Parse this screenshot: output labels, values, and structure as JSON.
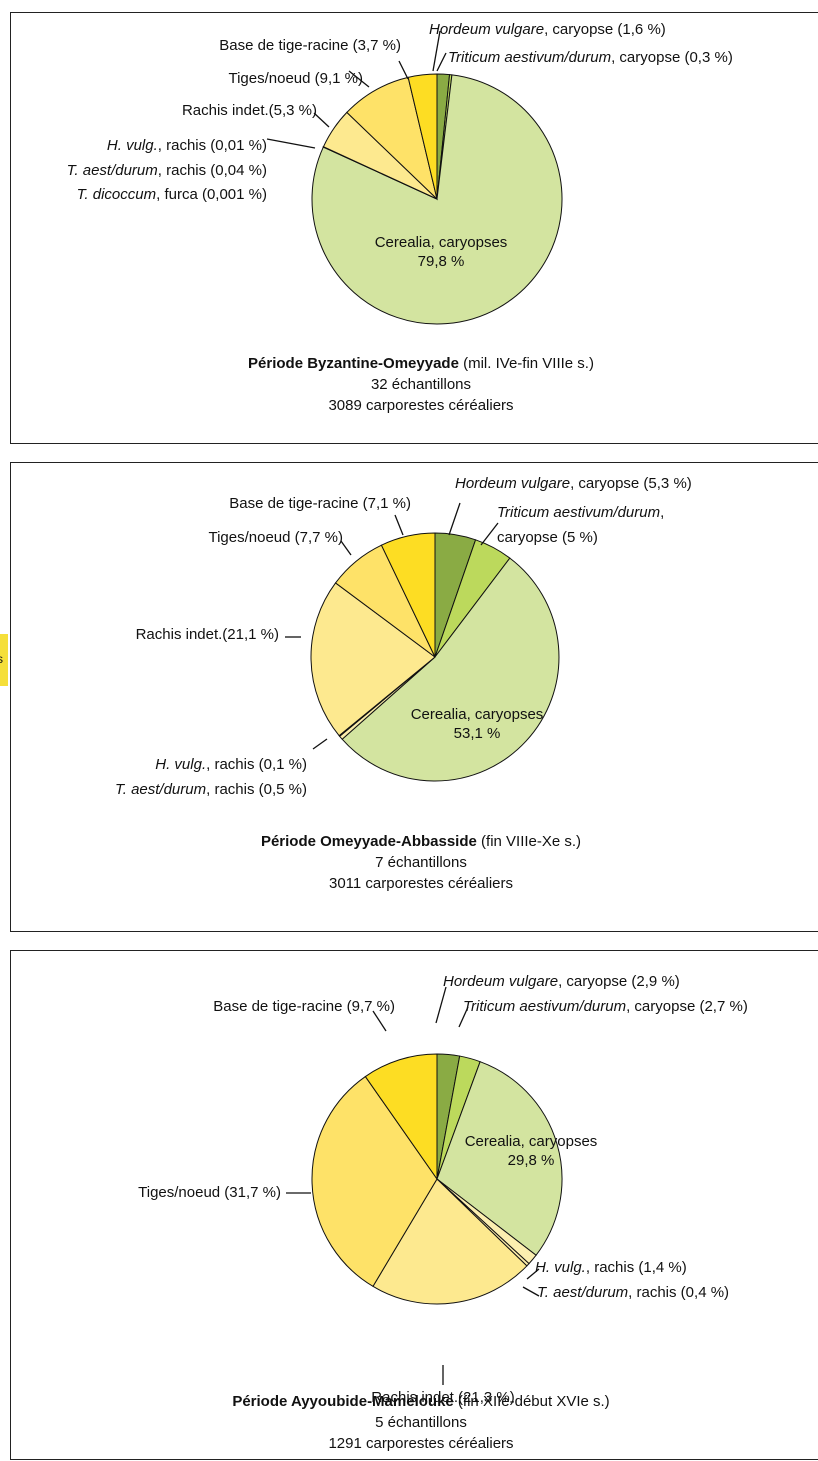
{
  "edge_tab": {
    "text": "s"
  },
  "panels": [
    {
      "caption": {
        "period": "Période Byzantine-Omeyyade",
        "dates": " (mil. IVe-fin VIIIe s.)",
        "samples": "32 échantillons",
        "count": "3089 carporestes céréaliers"
      },
      "labels": [
        {
          "it": "Hordeum vulgare",
          "rest": ", caryopse (1,6 %)"
        },
        {
          "it": "Triticum aestivum/durum",
          "rest": ", caryopse (0,3 %)"
        },
        {
          "it": "",
          "rest": "Base de tige-racine (3,7 %)"
        },
        {
          "it": "",
          "rest": "Tiges/noeud (9,1 %)"
        },
        {
          "it": "",
          "rest": "Rachis indet.(5,3 %)"
        },
        {
          "it": "H. vulg.",
          "rest": ", rachis (0,01 %)"
        },
        {
          "it": "T. aest/durum",
          "rest": ", rachis (0,04 %)"
        },
        {
          "it": "T. dicoccum",
          "rest": ", furca (0,001 %)"
        },
        {
          "it": "",
          "rest": "Cerealia, caryopses"
        },
        {
          "it": "",
          "rest": "79,8 %"
        }
      ]
    },
    {
      "caption": {
        "period": "Période Omeyyade-Abbasside",
        "dates": " (fin VIIIe-Xe s.)",
        "samples": "7 échantillons",
        "count": "3011 carporestes céréaliers"
      },
      "labels": [
        {
          "it": "Hordeum vulgare",
          "rest": ", caryopse (5,3 %)"
        },
        {
          "it": "Triticum aestivum/durum",
          "rest": ","
        },
        {
          "it": "",
          "rest": "caryopse (5 %)"
        },
        {
          "it": "",
          "rest": "Base de tige-racine (7,1 %)"
        },
        {
          "it": "",
          "rest": "Tiges/noeud (7,7 %)"
        },
        {
          "it": "",
          "rest": "Rachis indet.(21,1 %)"
        },
        {
          "it": "H. vulg.",
          "rest": ", rachis (0,1 %)"
        },
        {
          "it": "T. aest/durum",
          "rest": ", rachis (0,5 %)"
        },
        {
          "it": "",
          "rest": "Cerealia, caryopses"
        },
        {
          "it": "",
          "rest": "53,1 %"
        }
      ]
    },
    {
      "caption": {
        "period": "Période Ayyoubide-Mamelouke",
        "dates": " (fin XIIe-début XVIe s.)",
        "samples": "5 échantillons",
        "count": "1291 carporestes céréaliers"
      },
      "labels": [
        {
          "it": "Hordeum vulgare",
          "rest": ", caryopse (2,9 %)"
        },
        {
          "it": "Triticum aestivum/durum",
          "rest": ", caryopse (2,7 %)"
        },
        {
          "it": "",
          "rest": "Base de tige-racine (9,7 %)"
        },
        {
          "it": "",
          "rest": "Cerealia, caryopses"
        },
        {
          "it": "",
          "rest": "29,8 %"
        },
        {
          "it": "",
          "rest": "Tiges/noeud (31,7 %)"
        },
        {
          "it": "H. vulg.",
          "rest": ", rachis (1,4 %)"
        },
        {
          "it": "T. aest/durum",
          "rest": ", rachis (0,4 %)"
        },
        {
          "it": "",
          "rest": "Rachis indet.(21,3 %)"
        }
      ]
    }
  ],
  "chart_data": [
    {
      "type": "pie",
      "title": "Période Byzantine-Omeyyade (mil. IVe-fin VIIIe s.)",
      "start_angle_deg": 0,
      "direction": "clockwise",
      "slices": [
        {
          "label": "Hordeum vulgare, caryopse",
          "value": 1.6,
          "color": "#8aab44"
        },
        {
          "label": "Triticum aestivum/durum, caryopse",
          "value": 0.3,
          "color": "#bcd95c"
        },
        {
          "label": "Cerealia, caryopses",
          "value": 79.8,
          "color": "#d3e4a0"
        },
        {
          "label": "T. dicoccum, furca",
          "value": 0.001,
          "color": "#fdf0b8"
        },
        {
          "label": "T. aest/durum, rachis",
          "value": 0.04,
          "color": "#fcedab"
        },
        {
          "label": "H. vulg., rachis",
          "value": 0.01,
          "color": "#fcefb0"
        },
        {
          "label": "Rachis indet.",
          "value": 5.3,
          "color": "#fde98f"
        },
        {
          "label": "Tiges/noeud",
          "value": 9.1,
          "color": "#fee268"
        },
        {
          "label": "Base de tige-racine",
          "value": 3.7,
          "color": "#fddd23"
        }
      ]
    },
    {
      "type": "pie",
      "title": "Période Omeyyade-Abbasside (fin VIIIe-Xe s.)",
      "start_angle_deg": 0,
      "direction": "clockwise",
      "slices": [
        {
          "label": "Hordeum vulgare, caryopse",
          "value": 5.3,
          "color": "#8aab44"
        },
        {
          "label": "Triticum aestivum/durum, caryopse",
          "value": 5.0,
          "color": "#bcd95c"
        },
        {
          "label": "Cerealia, caryopses",
          "value": 53.1,
          "color": "#d3e4a0"
        },
        {
          "label": "T. aest/durum, rachis",
          "value": 0.5,
          "color": "#fcedab"
        },
        {
          "label": "H. vulg., rachis",
          "value": 0.1,
          "color": "#fcefb0"
        },
        {
          "label": "Rachis indet.",
          "value": 21.1,
          "color": "#fde98f"
        },
        {
          "label": "Tiges/noeud",
          "value": 7.7,
          "color": "#fee268"
        },
        {
          "label": "Base de tige-racine",
          "value": 7.1,
          "color": "#fddd23"
        }
      ]
    },
    {
      "type": "pie",
      "title": "Période Ayyoubide-Mamelouke (fin XIIe-début XVIe s.)",
      "start_angle_deg": 0,
      "direction": "clockwise",
      "slices": [
        {
          "label": "Hordeum vulgare, caryopse",
          "value": 2.9,
          "color": "#8aab44"
        },
        {
          "label": "Triticum aestivum/durum, caryopse",
          "value": 2.7,
          "color": "#bcd95c"
        },
        {
          "label": "Cerealia, caryopses",
          "value": 29.8,
          "color": "#d3e4a0"
        },
        {
          "label": "H. vulg., rachis",
          "value": 1.4,
          "color": "#fcefb0"
        },
        {
          "label": "T. aest/durum, rachis",
          "value": 0.4,
          "color": "#fcedab"
        },
        {
          "label": "Rachis indet.",
          "value": 21.3,
          "color": "#fde98f"
        },
        {
          "label": "Tiges/noeud",
          "value": 31.7,
          "color": "#fee268"
        },
        {
          "label": "Base de tige-racine",
          "value": 9.7,
          "color": "#fddd23"
        }
      ]
    }
  ]
}
